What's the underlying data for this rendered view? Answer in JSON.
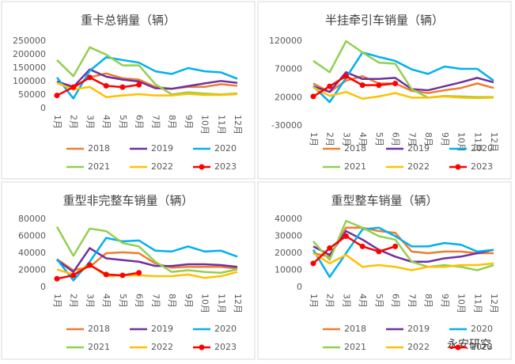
{
  "chart_data": [
    {
      "type": "line",
      "title": "重卡总销量（辆）",
      "categories": [
        "1月",
        "2月",
        "3月",
        "4月",
        "5月",
        "6月",
        "7月",
        "8月",
        "9月",
        "10月",
        "11月",
        "12月"
      ],
      "ylim": [
        0,
        250000
      ],
      "yticks": [
        0,
        50000,
        100000,
        150000,
        200000,
        250000
      ],
      "grid": false,
      "series": [
        {
          "name": "2018",
          "color": "#ED7D31",
          "values": [
            100000,
            76000,
            115000,
            130000,
            112000,
            107000,
            80000,
            73000,
            80000,
            80000,
            90000,
            84000
          ]
        },
        {
          "name": "2019",
          "color": "#7030A0",
          "values": [
            100000,
            80000,
            145000,
            118000,
            107000,
            100000,
            75000,
            73000,
            83000,
            93000,
            102000,
            95000
          ]
        },
        {
          "name": "2020",
          "color": "#00B0F0",
          "values": [
            115000,
            37000,
            140000,
            190000,
            180000,
            170000,
            138000,
            128000,
            150000,
            138000,
            134000,
            110000
          ]
        },
        {
          "name": "2021",
          "color": "#92D050",
          "values": [
            180000,
            120000,
            227000,
            200000,
            160000,
            160000,
            90000,
            52000,
            60000,
            55000,
            52000,
            56000
          ]
        },
        {
          "name": "2022",
          "color": "#FFC000",
          "values": [
            95000,
            70000,
            80000,
            42000,
            48000,
            53000,
            48000,
            48000,
            54000,
            50000,
            50000,
            53000
          ]
        },
        {
          "name": "2023",
          "color": "#FF0000",
          "markers": true,
          "values": [
            48000,
            79000,
            115000,
            84000,
            79000,
            88000,
            null,
            null,
            null,
            null,
            null,
            null
          ]
        }
      ]
    },
    {
      "type": "line",
      "title": "半挂牵引车销量（辆）",
      "categories": [
        "1月",
        "2月",
        "3月",
        "4月",
        "5月",
        "6月",
        "7月",
        "8月",
        "9月",
        "10月",
        "11月",
        "12月"
      ],
      "ylim": [
        -30000,
        120000
      ],
      "yticks": [
        -30000,
        20000,
        70000,
        120000
      ],
      "grid": false,
      "series": [
        {
          "name": "2018",
          "color": "#ED7D31",
          "values": [
            45000,
            30000,
            50000,
            58000,
            45000,
            45000,
            32000,
            28000,
            33000,
            37000,
            45000,
            37000
          ]
        },
        {
          "name": "2019",
          "color": "#7030A0",
          "values": [
            40000,
            30000,
            65000,
            53000,
            53000,
            55000,
            35000,
            33000,
            40000,
            47000,
            55000,
            47000
          ]
        },
        {
          "name": "2020",
          "color": "#00B0F0",
          "values": [
            40000,
            12000,
            55000,
            100000,
            92000,
            85000,
            70000,
            62000,
            75000,
            71000,
            71000,
            50000
          ]
        },
        {
          "name": "2021",
          "color": "#92D050",
          "values": [
            85000,
            65000,
            120000,
            100000,
            82000,
            80000,
            35000,
            20000,
            23000,
            22000,
            21000,
            21000
          ]
        },
        {
          "name": "2022",
          "color": "#FFC000",
          "values": [
            38000,
            23000,
            30000,
            18000,
            22000,
            28000,
            20000,
            20000,
            22000,
            20000,
            19000,
            20000
          ]
        },
        {
          "name": "2023",
          "color": "#FF0000",
          "markers": true,
          "values": [
            22000,
            40000,
            58000,
            42000,
            42000,
            45000,
            null,
            null,
            null,
            null,
            null,
            null
          ]
        }
      ]
    },
    {
      "type": "line",
      "title": "重型非完整车销量（辆）",
      "categories": [
        "1月",
        "2月",
        "3月",
        "4月",
        "5月",
        "6月",
        "7月",
        "8月",
        "9月",
        "10月",
        "11月",
        "12月"
      ],
      "ylim": [
        0,
        80000
      ],
      "yticks": [
        0,
        20000,
        40000,
        60000,
        80000
      ],
      "grid": false,
      "series": [
        {
          "name": "2018",
          "color": "#ED7D31",
          "values": [
            33000,
            20000,
            24000,
            40000,
            41000,
            40000,
            28000,
            23000,
            24000,
            24000,
            24000,
            22000
          ]
        },
        {
          "name": "2019",
          "color": "#7030A0",
          "values": [
            32000,
            18000,
            46000,
            34000,
            32000,
            30000,
            25000,
            25000,
            27000,
            27000,
            26000,
            24000
          ]
        },
        {
          "name": "2020",
          "color": "#00B0F0",
          "values": [
            33000,
            8000,
            30000,
            58000,
            54000,
            55000,
            43000,
            42000,
            48000,
            42000,
            43000,
            36000
          ]
        },
        {
          "name": "2021",
          "color": "#92D050",
          "values": [
            71000,
            37000,
            69000,
            66000,
            52000,
            48000,
            30000,
            18000,
            20000,
            18000,
            17000,
            21000
          ]
        },
        {
          "name": "2022",
          "color": "#FFC000",
          "values": [
            21000,
            15000,
            27000,
            13000,
            14000,
            14000,
            13000,
            13000,
            15000,
            11000,
            13000,
            18000
          ]
        },
        {
          "name": "2023",
          "color": "#FF0000",
          "markers": true,
          "values": [
            10000,
            14000,
            26000,
            15000,
            14000,
            17000,
            null,
            null,
            null,
            null,
            null,
            null
          ]
        }
      ]
    },
    {
      "type": "line",
      "title": "重型整车销量（辆）",
      "categories": [
        "1月",
        "2月",
        "3月",
        "4月",
        "5月",
        "6月",
        "7月",
        "8月",
        "9月",
        "10月",
        "11月",
        "12月"
      ],
      "ylim": [
        0,
        40000
      ],
      "yticks": [
        0,
        10000,
        20000,
        30000,
        40000
      ],
      "grid": false,
      "series": [
        {
          "name": "2018",
          "color": "#ED7D31",
          "values": [
            20000,
            18000,
            35000,
            35000,
            33000,
            32000,
            21000,
            20000,
            21000,
            21000,
            20000,
            20000
          ]
        },
        {
          "name": "2019",
          "color": "#7030A0",
          "values": [
            24000,
            19000,
            33000,
            28000,
            22000,
            18000,
            15000,
            15000,
            17000,
            18000,
            20000,
            22000
          ]
        },
        {
          "name": "2020",
          "color": "#00B0F0",
          "values": [
            22000,
            6000,
            20000,
            34000,
            35000,
            30000,
            24000,
            24000,
            26000,
            25000,
            21000,
            22000
          ]
        },
        {
          "name": "2021",
          "color": "#92D050",
          "values": [
            27000,
            16000,
            39000,
            35000,
            30000,
            28000,
            15000,
            12000,
            13000,
            12000,
            10000,
            13000
          ]
        },
        {
          "name": "2022",
          "color": "#FFC000",
          "values": [
            20000,
            14000,
            19000,
            12000,
            13000,
            12000,
            10000,
            12000,
            12000,
            13000,
            13000,
            14000
          ]
        },
        {
          "name": "2023",
          "color": "#FF0000",
          "markers": true,
          "values": [
            14000,
            23000,
            30000,
            24000,
            21000,
            24000,
            null,
            null,
            null,
            null,
            null,
            null
          ]
        }
      ]
    }
  ],
  "watermark": "永安研究"
}
